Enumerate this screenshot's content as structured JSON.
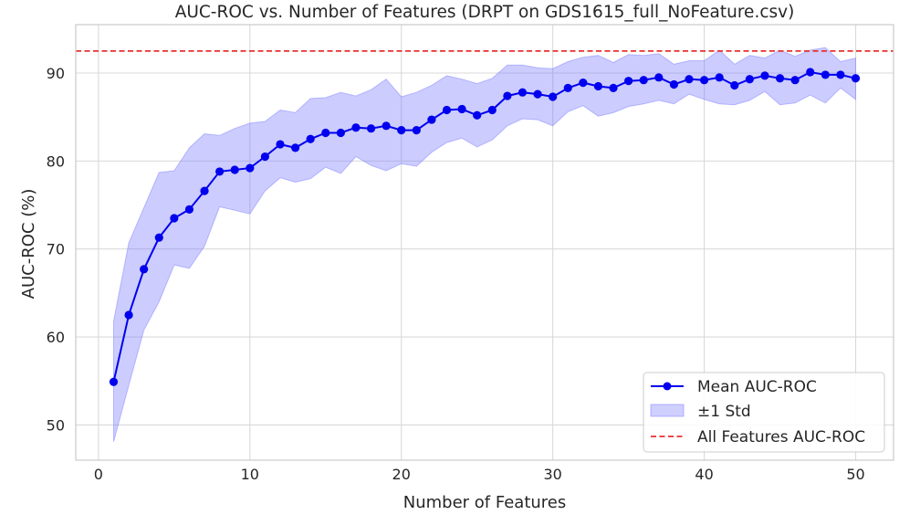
{
  "chart_data": {
    "type": "line",
    "title": "AUC-ROC vs. Number of Features (DRPT on GDS1615_full_NoFeature.csv)",
    "xlabel": "Number of Features",
    "ylabel": "AUC-ROC (%)",
    "xlim": [
      -1.5,
      52.5
    ],
    "ylim": [
      46,
      95.5
    ],
    "xticks": [
      0,
      10,
      20,
      30,
      40,
      50
    ],
    "yticks": [
      50,
      60,
      70,
      80,
      90
    ],
    "grid": true,
    "legend_position": "lower-right",
    "x": [
      1,
      2,
      3,
      4,
      5,
      6,
      7,
      8,
      9,
      10,
      11,
      12,
      13,
      14,
      15,
      16,
      17,
      18,
      19,
      20,
      21,
      22,
      23,
      24,
      25,
      26,
      27,
      28,
      29,
      30,
      31,
      32,
      33,
      34,
      35,
      36,
      37,
      38,
      39,
      40,
      41,
      42,
      43,
      44,
      45,
      46,
      47,
      48,
      49,
      50
    ],
    "series": [
      {
        "name": "Mean AUC-ROC",
        "kind": "line-markers",
        "color": "#0000ee",
        "values": [
          54.9,
          62.5,
          67.7,
          71.3,
          73.5,
          74.5,
          76.6,
          78.8,
          79.0,
          79.2,
          80.5,
          81.9,
          81.5,
          82.5,
          83.2,
          83.2,
          83.8,
          83.7,
          84.0,
          83.5,
          83.5,
          84.7,
          85.8,
          85.9,
          85.2,
          85.8,
          87.4,
          87.8,
          87.6,
          87.3,
          88.3,
          88.9,
          88.5,
          88.3,
          89.1,
          89.2,
          89.5,
          88.7,
          89.3,
          89.2,
          89.5,
          88.6,
          89.3,
          89.7,
          89.4,
          89.2,
          90.1,
          89.8,
          89.8,
          89.4
        ]
      },
      {
        "name": "±1 Std",
        "kind": "band",
        "color": "#7878ff",
        "upper": [
          61.8,
          70.7,
          74.7,
          78.7,
          78.9,
          81.5,
          83.1,
          82.9,
          83.7,
          84.3,
          84.5,
          85.8,
          85.5,
          87.1,
          87.2,
          87.8,
          87.4,
          88.1,
          89.3,
          87.3,
          87.8,
          88.6,
          89.7,
          89.3,
          88.8,
          89.4,
          90.9,
          90.9,
          90.6,
          90.5,
          91.3,
          91.8,
          92.0,
          91.2,
          92.1,
          92.0,
          92.2,
          91.0,
          91.4,
          91.4,
          92.6,
          91.0,
          92.0,
          91.7,
          92.6,
          91.9,
          92.6,
          92.9,
          91.3,
          91.7
        ],
        "lower": [
          48.1,
          54.5,
          60.8,
          64.0,
          68.2,
          67.8,
          70.3,
          74.8,
          74.4,
          74.0,
          76.6,
          78.1,
          77.6,
          78.0,
          79.3,
          78.6,
          80.5,
          79.5,
          78.9,
          79.7,
          79.4,
          81.0,
          82.1,
          82.6,
          81.6,
          82.4,
          84.0,
          84.8,
          84.7,
          84.0,
          85.6,
          86.3,
          85.1,
          85.5,
          86.2,
          86.5,
          86.9,
          86.5,
          87.6,
          87.0,
          86.5,
          86.4,
          86.9,
          87.9,
          86.4,
          86.6,
          87.5,
          86.6,
          88.3,
          87.0
        ]
      },
      {
        "name": "All Features AUC-ROC",
        "kind": "hline",
        "color": "#e8302e",
        "value": 92.5
      }
    ]
  }
}
